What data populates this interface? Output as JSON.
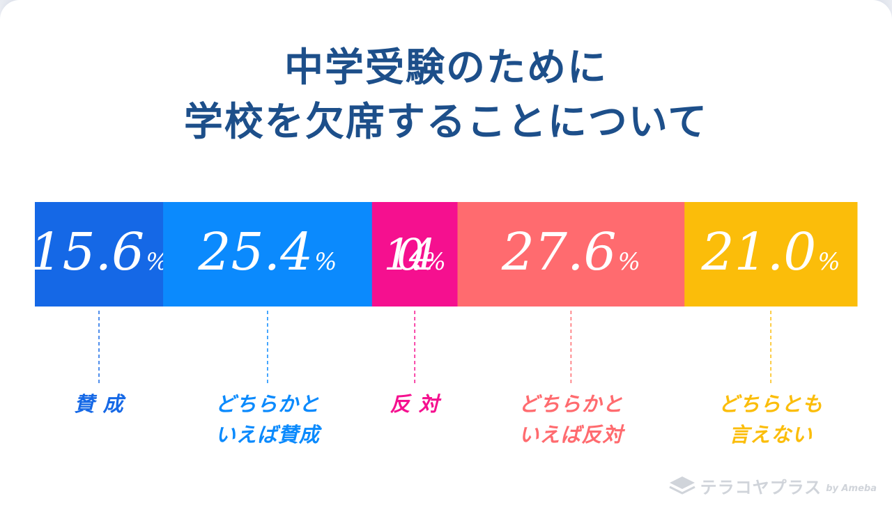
{
  "title": {
    "line1": "中学受験のために",
    "line2": "学校を欠席することについて"
  },
  "chart_data": {
    "type": "bar",
    "stacked": true,
    "orientation": "horizontal",
    "unit": "%",
    "categories": [
      "賛成",
      "どちらかといえば賛成",
      "反対",
      "どちらかといえば反対",
      "どちらとも言えない"
    ],
    "values": [
      15.6,
      25.4,
      10.4,
      27.6,
      21.0
    ],
    "value_labels": [
      "15.6",
      "25.4",
      "10.4",
      "27.6",
      "21.0"
    ],
    "category_labels": [
      "賛 成",
      "どちらかと\nいえば賛成",
      "反 対",
      "どちらかと\nいえば反対",
      "どちらとも\n言えない"
    ],
    "colors": [
      "#1568e6",
      "#0b8afd",
      "#f5108f",
      "#ff6b6f",
      "#fbbd0a"
    ],
    "percent_sign": "%"
  },
  "watermark": {
    "brand": "テラコヤプラス",
    "by": "by Ameba",
    "logo_icon": "layers-icon"
  }
}
